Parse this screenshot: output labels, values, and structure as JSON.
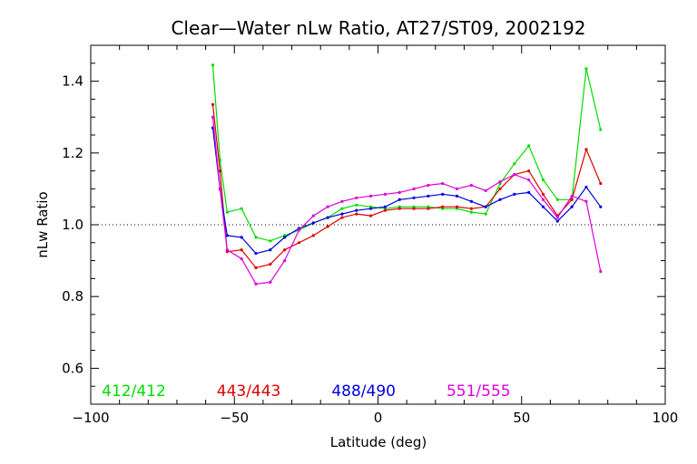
{
  "chart_data": {
    "type": "line",
    "title": "Clear—Water nLw Ratio, AT27/ST09, 2002192",
    "xlabel": "Latitude (deg)",
    "ylabel": "nLw Ratio",
    "xlim": [
      -100,
      100
    ],
    "ylim": [
      0.5,
      1.5
    ],
    "x_ticks": [
      "−100",
      "−50",
      "0",
      "50",
      "100"
    ],
    "y_ticks": [
      "0.6",
      "0.8",
      "1.0",
      "1.2",
      "1.4"
    ],
    "reference_line": 1.0,
    "grid": false,
    "legend_placement": "bottom",
    "x": [
      -57.5,
      -55,
      -52.5,
      -47.5,
      -42.5,
      -37.5,
      -32.5,
      -27.5,
      -22.5,
      -17.5,
      -12.5,
      -7.5,
      -2.5,
      2.5,
      7.5,
      12.5,
      17.5,
      22.5,
      27.5,
      32.5,
      37.5,
      42.5,
      47.5,
      52.5,
      57.5,
      62.5,
      67.5,
      72.5,
      77.5
    ],
    "series": [
      {
        "name": "412/412",
        "color": "#00dd00",
        "values": [
          1.445,
          1.18,
          1.035,
          1.045,
          0.965,
          0.955,
          0.97,
          0.985,
          1.005,
          1.02,
          1.045,
          1.055,
          1.05,
          1.045,
          1.05,
          1.05,
          1.05,
          1.045,
          1.045,
          1.035,
          1.03,
          1.115,
          1.17,
          1.22,
          1.125,
          1.07,
          1.07,
          1.435,
          1.265
        ]
      },
      {
        "name": "443/443",
        "color": "#dd0000",
        "values": [
          1.335,
          1.15,
          0.925,
          0.93,
          0.88,
          0.89,
          0.93,
          0.95,
          0.97,
          0.995,
          1.02,
          1.03,
          1.025,
          1.04,
          1.045,
          1.045,
          1.045,
          1.05,
          1.05,
          1.045,
          1.05,
          1.1,
          1.14,
          1.15,
          1.085,
          1.025,
          1.07,
          1.21,
          1.115
        ]
      },
      {
        "name": "488/490",
        "color": "#0000dd",
        "values": [
          1.27,
          1.1,
          0.97,
          0.965,
          0.92,
          0.93,
          0.965,
          0.99,
          1.005,
          1.02,
          1.03,
          1.04,
          1.045,
          1.05,
          1.07,
          1.075,
          1.08,
          1.085,
          1.08,
          1.065,
          1.05,
          1.07,
          1.085,
          1.09,
          1.05,
          1.01,
          1.05,
          1.105,
          1.05
        ]
      },
      {
        "name": "551/555",
        "color": "#dd00dd",
        "values": [
          1.3,
          1.1,
          0.93,
          0.905,
          0.835,
          0.84,
          0.9,
          0.985,
          1.025,
          1.05,
          1.065,
          1.075,
          1.08,
          1.085,
          1.09,
          1.1,
          1.11,
          1.115,
          1.1,
          1.11,
          1.095,
          1.12,
          1.14,
          1.125,
          1.07,
          1.02,
          1.08,
          1.065,
          0.87
        ]
      }
    ]
  }
}
